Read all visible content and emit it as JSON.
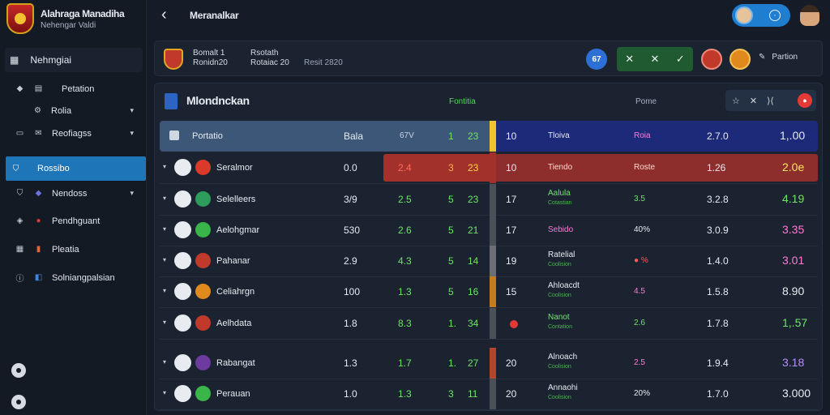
{
  "app": {
    "title_line1": "Alahraga Manadiha",
    "title_line2": "Nehengar   Valdi"
  },
  "sidebar": {
    "header_label": "Nehmgiai",
    "items": [
      {
        "label": "Petation",
        "icon": "diamond-icon"
      },
      {
        "label": "Rolia",
        "icon": "gear-icon"
      },
      {
        "label": "Reofiagss",
        "icon": "monitor-icon"
      },
      {
        "label": "Rossibo",
        "icon": "shield-icon"
      },
      {
        "label": "Nendoss",
        "icon": "badge-icon"
      },
      {
        "label": "Pendhguant",
        "icon": "pin-icon"
      },
      {
        "label": "Pleatia",
        "icon": "grid-icon"
      },
      {
        "label": "Solniangpalsian",
        "icon": "info-icon"
      }
    ]
  },
  "header": {
    "page_title": "Meranalkar"
  },
  "matchbar": {
    "team_name": "Bomalt 1",
    "team_sub": "Ronidn20",
    "meta_title": "Rsotath",
    "meta_sub": "Rotaiac 20",
    "meta_date": "Resit 2820",
    "left_badge": "67",
    "action_button": "Partion"
  },
  "panel": {
    "title": "Mlondnckan",
    "col_left": "Fontitia",
    "col_right": "Pome",
    "tools": [
      "☆",
      "✕",
      "⟩⟨"
    ],
    "record_label": "●"
  },
  "header_row": {
    "team": "Portatio",
    "v1": "Bala",
    "v2": "67V",
    "v3": "1",
    "v4": "23",
    "r1": "10",
    "r2": "Tloiva",
    "r3": "Roia",
    "r4": "2.7.0",
    "r5": "1,.00"
  },
  "rows": [
    {
      "team": "Seralmor",
      "v1": "0.0",
      "v2": "2.4",
      "v3": "3",
      "v4": "23",
      "r1": "10",
      "r2": "Tiendo",
      "r2sub": "",
      "r3": "Roste",
      "r4": "1.26",
      "r5": "2.0e",
      "color_v2": "#ff6b5b",
      "color_v3": "#ffb24a",
      "color_v4": "#ffd447",
      "color_r2": "#ffd9d2",
      "color_r3": "#ffd9d2",
      "color_r5": "#ffe45c",
      "marker": "#a2312c",
      "highlight": true
    },
    {
      "team": "Selelleers",
      "v1": "3/9",
      "v2": "2.5",
      "v3": "5",
      "v4": "23",
      "r1": "17",
      "r2": "Aalula",
      "r2sub": "Cotastian",
      "r3": "3.5",
      "r4": "3.2.8",
      "r5": "4.19",
      "color_v2": "#6fe36a",
      "color_v3": "#6fe36a",
      "color_v4": "#6fe36a",
      "color_r2": "#6fe36a",
      "color_r3": "#6fe36a",
      "color_r5": "#6fe36a",
      "marker": "#4a4f58",
      "highlight": false
    },
    {
      "team": "Aelohgmar",
      "v1": "530",
      "v2": "2.6",
      "v3": "5",
      "v4": "21",
      "r1": "17",
      "r2": "Sebido",
      "r2sub": "",
      "r3": "40%",
      "r4": "3.0.9",
      "r5": "3.35",
      "color_v2": "#6fe36a",
      "color_v3": "#6fe36a",
      "color_v4": "#6fe36a",
      "color_r2": "#ff7ad6",
      "color_r3": "#e6ebf2",
      "color_r5": "#ff7ad6",
      "marker": "#4a4f58",
      "highlight": false
    },
    {
      "team": "Pahanar",
      "v1": "2.9",
      "v2": "4.3",
      "v3": "5",
      "v4": "14",
      "r1": "19",
      "r2": "Ratelial",
      "r2sub": "Coolision",
      "r3": "● %",
      "r4": "1.4.0",
      "r5": "3.01",
      "color_v2": "#6fe36a",
      "color_v3": "#6fe36a",
      "color_v4": "#6fe36a",
      "color_r2": "#e6ebf2",
      "color_r3": "#ff5a5a",
      "color_r5": "#ff7ad6",
      "marker": "#6b6f75",
      "highlight": false
    },
    {
      "team": "Celiahrgn",
      "v1": "100",
      "v2": "1.3",
      "v3": "5",
      "v4": "16",
      "r1": "15",
      "r2": "Ahloacdt",
      "r2sub": "Coolision",
      "r3": "4.5",
      "r4": "1.5.8",
      "r5": "8.90",
      "color_v2": "#6fe36a",
      "color_v3": "#6fe36a",
      "color_v4": "#6fe36a",
      "color_r2": "#e6ebf2",
      "color_r3": "#ff7ad6",
      "color_r5": "#e6ebf2",
      "marker": "#c47d1c",
      "highlight": false
    },
    {
      "team": "Aelhdata",
      "v1": "1.8",
      "v2": "8.3",
      "v3": "1.",
      "v4": "34",
      "r1": "",
      "r2": "Nanot",
      "r2sub": "Contation",
      "r3": "2.6",
      "r4": "1.7.8",
      "r5": "1,.57",
      "color_v2": "#6fe36a",
      "color_v3": "#6fe36a",
      "color_v4": "#6fe36a",
      "color_r2": "#6fe36a",
      "color_r3": "#6fe36a",
      "color_r5": "#6fe36a",
      "marker": "#4a4f58",
      "highlight": false
    },
    {
      "team": "Rabangat",
      "v1": "1.3",
      "v2": "1.7",
      "v3": "1.",
      "v4": "27",
      "r1": "20",
      "r2": "Alnoach",
      "r2sub": "Coolision",
      "r3": "2.5",
      "r4": "1.9.4",
      "r5": "3.18",
      "color_v2": "#6fe36a",
      "color_v3": "#6fe36a",
      "color_v4": "#6fe36a",
      "color_r2": "#e6ebf2",
      "color_r3": "#ff7ad6",
      "color_r5": "#b98cff",
      "marker": "#b3452c",
      "highlight": false
    },
    {
      "team": "Perauan",
      "v1": "1.0",
      "v2": "1.3",
      "v3": "3",
      "v4": "11",
      "r1": "20",
      "r2": "Annaohi",
      "r2sub": "Coolision",
      "r3": "20%",
      "r4": "1.7.0",
      "r5": "3.000",
      "color_v2": "#6fe36a",
      "color_v3": "#6fe36a",
      "color_v4": "#6fe36a",
      "color_r2": "#e6ebf2",
      "color_r3": "#e6ebf2",
      "color_r5": "#e6ebf2",
      "marker": "#4a4f58",
      "highlight": false
    }
  ]
}
